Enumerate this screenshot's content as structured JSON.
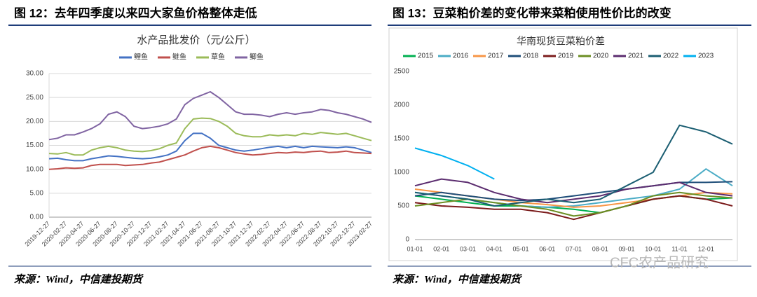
{
  "figure_titles": [
    "图 12：去年四季度以来四大家鱼价格整体走低",
    "图 13：豆菜粕价差的变化带来菜粕使用性价比的改变"
  ],
  "sources": [
    "来源：Wind，中信建投期货",
    "来源：Wind，中信建投期货"
  ],
  "watermark": "CFC农产品研究",
  "chart_data": [
    {
      "type": "line",
      "title": "水产品批发价（元/公斤）",
      "categories": [
        "2019-12-27",
        null,
        "2020-02-27",
        null,
        "2020-04-27",
        null,
        "2020-06-27",
        null,
        "2020-08-27",
        null,
        "2020-10-27",
        null,
        "2020-12-27",
        null,
        "2021-02-27",
        null,
        "2021-04-27",
        null,
        "2021-06-27",
        null,
        "2021-08-27",
        null,
        "2021-10-27",
        null,
        "2021-12-27",
        null,
        "2022-02-27",
        null,
        "2022-04-27",
        null,
        "2022-06-27",
        null,
        "2022-08-27",
        null,
        "2022-10-27",
        null,
        "2022-12-27",
        null,
        "2023-02-27"
      ],
      "series": [
        {
          "name": "鲤鱼",
          "color": "#4472c4",
          "values": [
            12.2,
            12.3,
            12.0,
            11.8,
            11.8,
            12.2,
            12.5,
            12.8,
            12.7,
            12.5,
            12.3,
            12.2,
            12.3,
            12.6,
            13.0,
            13.8,
            16.0,
            17.5,
            17.5,
            16.5,
            15.0,
            14.5,
            14.0,
            13.8,
            14.0,
            14.3,
            14.6,
            14.8,
            14.5,
            14.8,
            14.5,
            14.8,
            14.7,
            14.6,
            14.5,
            14.7,
            14.5,
            14.0,
            13.5
          ]
        },
        {
          "name": "鲢鱼",
          "color": "#c0504d",
          "values": [
            10.0,
            10.1,
            10.3,
            10.2,
            10.3,
            10.8,
            11.0,
            11.0,
            11.0,
            10.8,
            10.9,
            11.0,
            11.3,
            11.5,
            12.0,
            12.5,
            13.0,
            13.8,
            14.5,
            14.8,
            14.5,
            14.0,
            13.5,
            13.2,
            13.0,
            13.1,
            13.3,
            13.5,
            13.4,
            13.6,
            13.5,
            13.7,
            13.8,
            13.5,
            13.6,
            13.8,
            13.5,
            13.4,
            13.3
          ]
        },
        {
          "name": "草鱼",
          "color": "#9bbb59",
          "values": [
            13.3,
            13.2,
            13.5,
            13.0,
            13.0,
            14.0,
            14.5,
            14.8,
            14.5,
            14.0,
            13.8,
            13.7,
            13.9,
            14.3,
            15.0,
            15.5,
            18.5,
            20.5,
            20.7,
            20.6,
            20.0,
            19.0,
            17.5,
            17.0,
            16.8,
            16.8,
            17.2,
            17.0,
            17.2,
            17.0,
            17.5,
            17.3,
            17.7,
            17.5,
            17.3,
            17.5,
            17.0,
            16.5,
            16.0
          ]
        },
        {
          "name": "鲫鱼",
          "color": "#8064a2",
          "values": [
            16.2,
            16.5,
            17.2,
            17.2,
            17.8,
            18.5,
            19.5,
            21.5,
            22.0,
            21.0,
            19.0,
            18.5,
            18.7,
            19.0,
            19.5,
            20.5,
            23.5,
            24.8,
            25.5,
            26.2,
            25.0,
            23.5,
            22.0,
            21.5,
            21.5,
            21.3,
            21.0,
            21.5,
            21.8,
            21.5,
            21.8,
            22.0,
            22.5,
            22.3,
            21.8,
            21.5,
            21.0,
            20.5,
            19.8
          ]
        }
      ],
      "ylim": [
        0,
        30
      ],
      "yticks": [
        {
          "value": 0,
          "label": "0.00"
        },
        {
          "value": 5,
          "label": "5.00"
        },
        {
          "value": 10,
          "label": "10.00"
        },
        {
          "value": 15,
          "label": "15.00"
        },
        {
          "value": 20,
          "label": "20.00"
        },
        {
          "value": 25,
          "label": "25.00"
        },
        {
          "value": 30,
          "label": "30.00"
        }
      ],
      "grid": true,
      "legend": "top"
    },
    {
      "type": "line",
      "title": "华南现货豆菜粕价差",
      "categories": [
        "01-01",
        "02-01",
        "03-01",
        "04-01",
        "05-01",
        "06-01",
        "07-01",
        "08-01",
        "09-01",
        "10-01",
        "11-01",
        "12-01",
        null
      ],
      "series": [
        {
          "name": "2015",
          "color": "#00b050",
          "values": [
            650,
            600,
            550,
            500,
            500,
            480,
            450,
            400,
            500,
            600,
            650,
            600,
            620
          ]
        },
        {
          "name": "2016",
          "color": "#4bacc6",
          "values": [
            700,
            650,
            600,
            550,
            500,
            480,
            500,
            550,
            600,
            650,
            750,
            1050,
            800
          ]
        },
        {
          "name": "2017",
          "color": "#f79646",
          "values": [
            750,
            700,
            650,
            600,
            550,
            520,
            480,
            500,
            550,
            600,
            650,
            700,
            680
          ]
        },
        {
          "name": "2018",
          "color": "#1f4e79",
          "values": [
            650,
            700,
            650,
            600,
            580,
            600,
            650,
            700,
            750,
            800,
            850,
            850,
            860
          ]
        },
        {
          "name": "2019",
          "color": "#7b1c1c",
          "values": [
            550,
            500,
            480,
            450,
            450,
            400,
            300,
            400,
            500,
            600,
            650,
            600,
            500
          ]
        },
        {
          "name": "2020",
          "color": "#6b8e23",
          "values": [
            500,
            550,
            600,
            550,
            500,
            450,
            350,
            400,
            500,
            650,
            700,
            650,
            620
          ]
        },
        {
          "name": "2021",
          "color": "#5b2c6f",
          "values": [
            800,
            900,
            850,
            700,
            600,
            550,
            600,
            650,
            750,
            800,
            850,
            700,
            650
          ]
        },
        {
          "name": "2022",
          "color": "#1b5e72",
          "values": [
            700,
            650,
            600,
            500,
            550,
            600,
            550,
            600,
            800,
            1000,
            1700,
            1600,
            1420
          ]
        },
        {
          "name": "2023",
          "color": "#00b0f0",
          "values": [
            1360,
            1250,
            1100,
            900,
            null,
            null,
            null,
            null,
            null,
            null,
            null,
            null,
            null
          ]
        }
      ],
      "ylim": [
        0,
        2500
      ],
      "yticks": [
        0,
        500,
        1000,
        1500,
        2000,
        2500
      ],
      "grid": false,
      "legend": "top"
    }
  ]
}
